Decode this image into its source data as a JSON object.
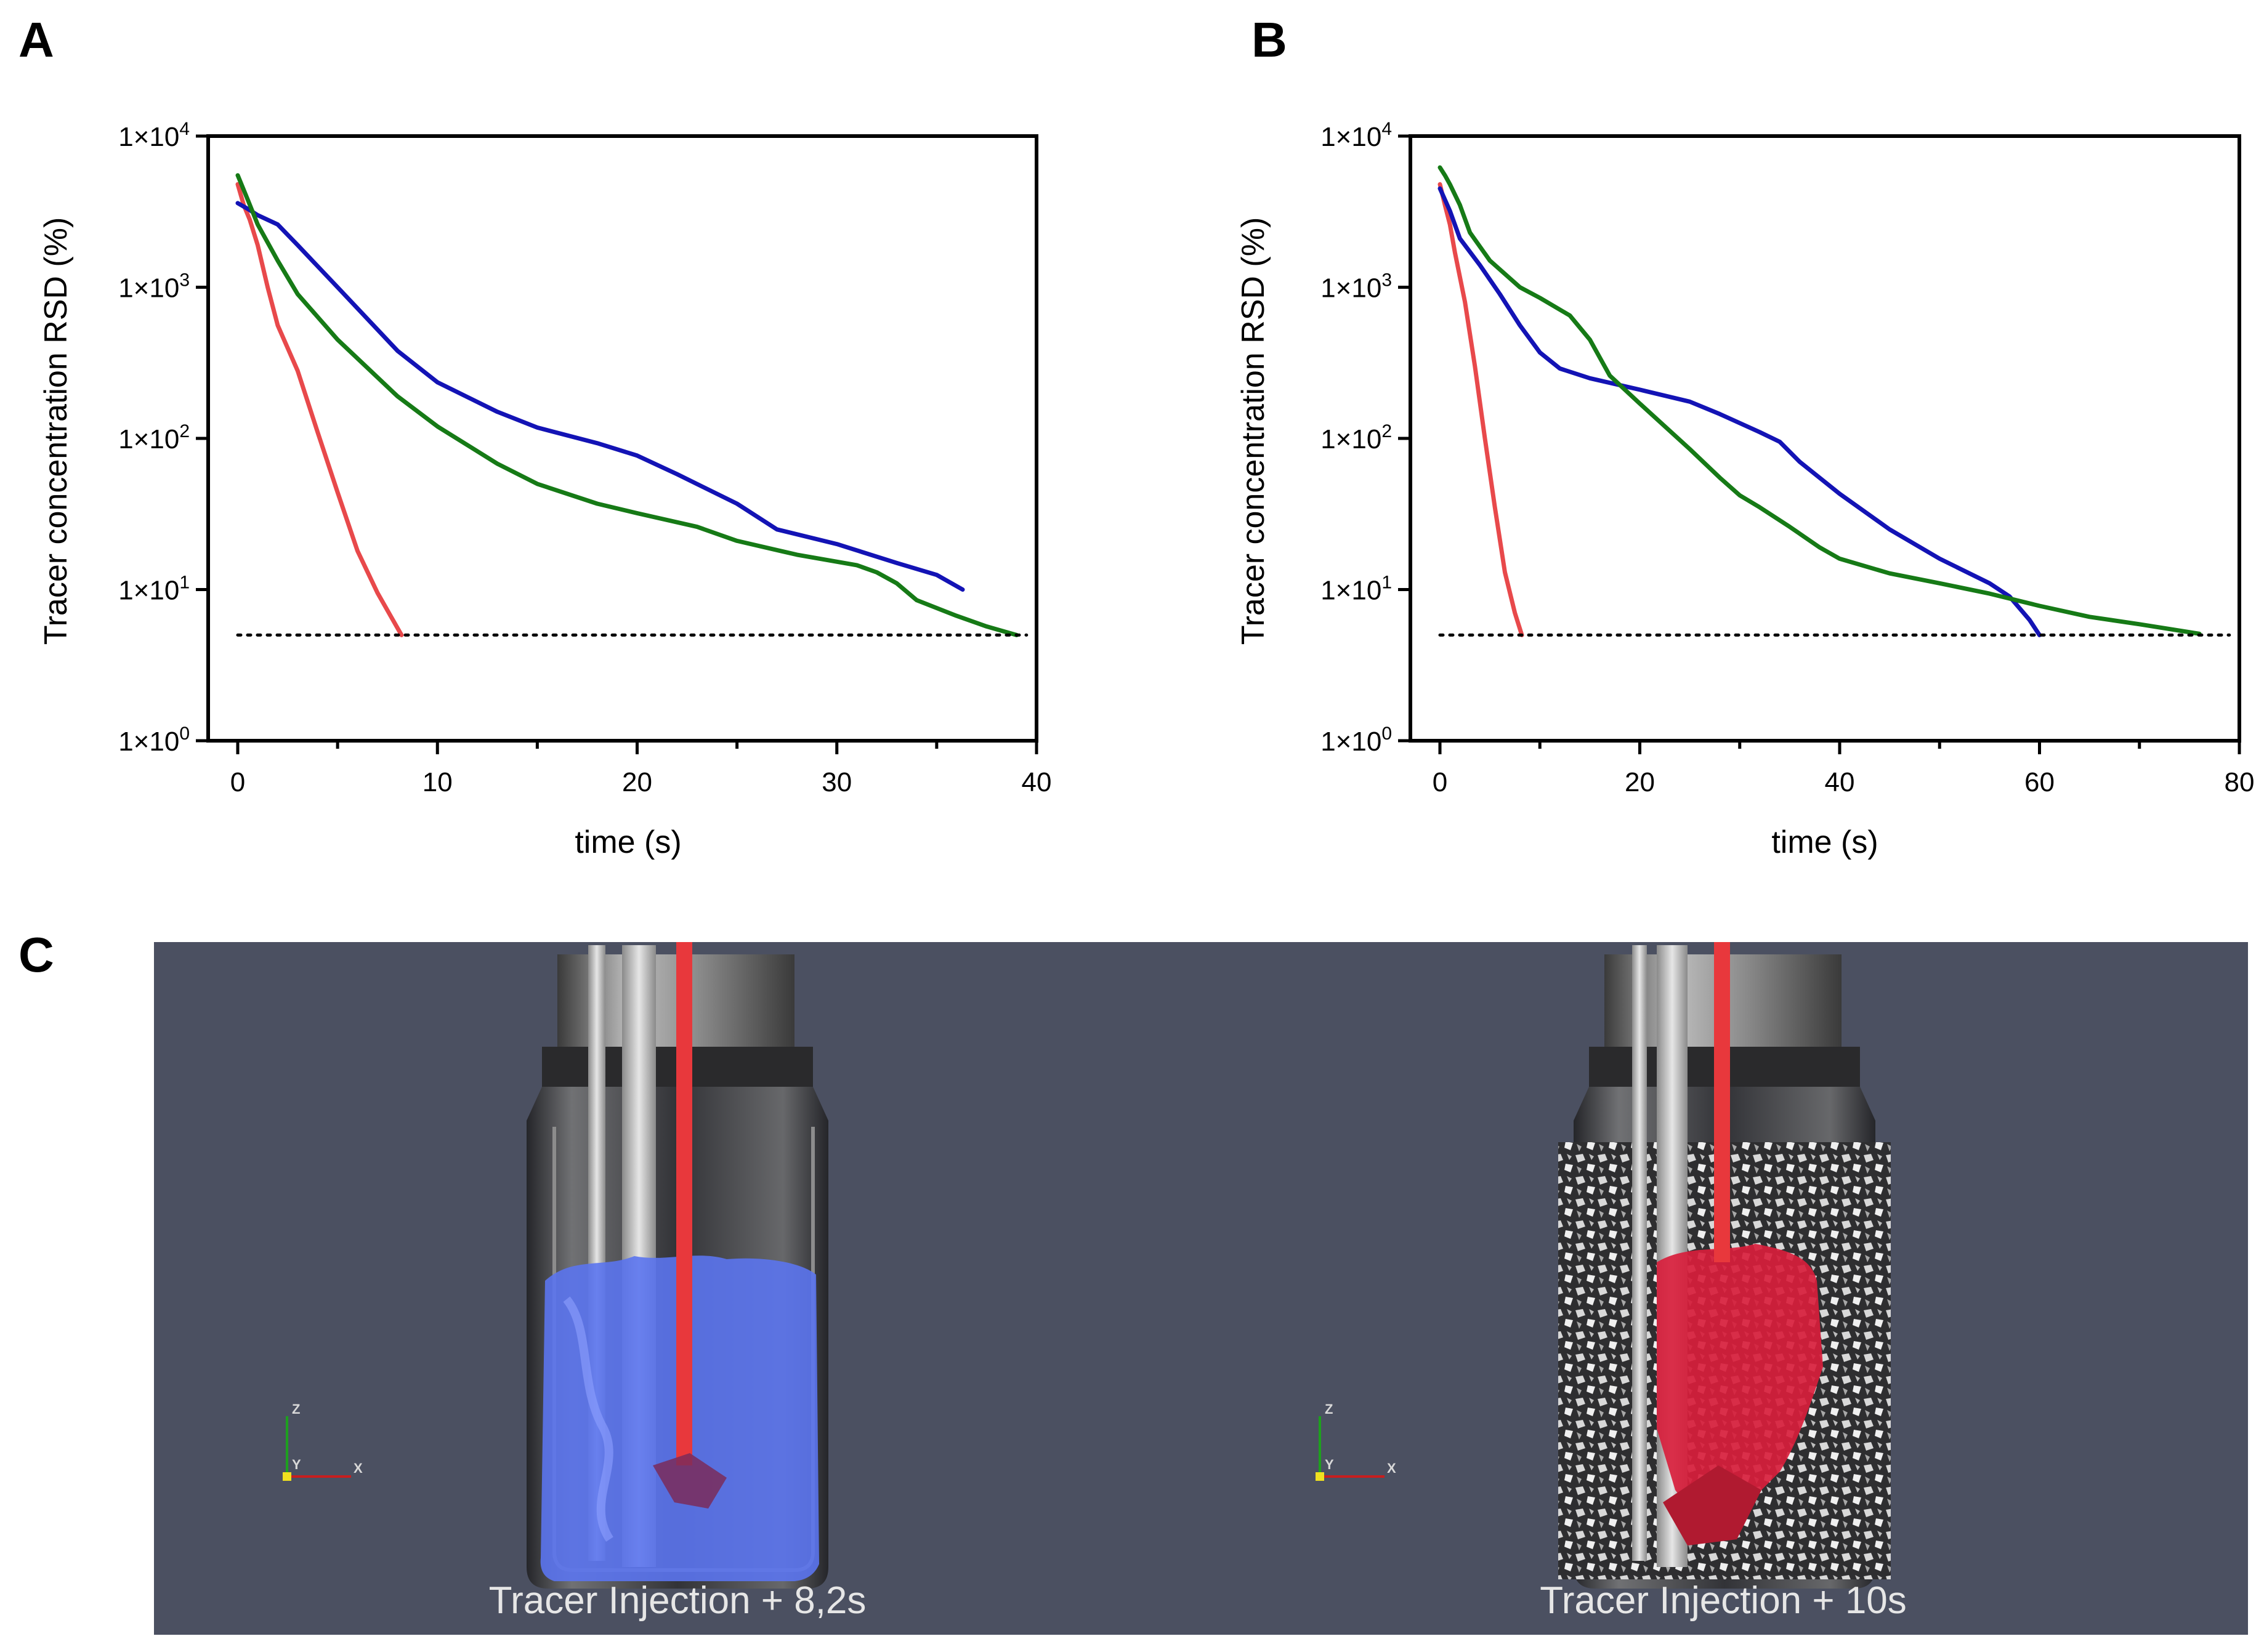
{
  "panels": {
    "a_letter": "A",
    "b_letter": "B",
    "c_letter": "C"
  },
  "chart_data": [
    {
      "id": "A",
      "type": "line",
      "xlabel": "time (s)",
      "ylabel": "Tracer concentration RSD (%)",
      "xlim": [
        0,
        40
      ],
      "ylim": [
        1,
        10000
      ],
      "yscale": "log",
      "xticks": [
        0,
        10,
        20,
        30,
        40
      ],
      "xtick_labels": [
        "0",
        "10",
        "20",
        "30",
        "40"
      ],
      "xminor": [
        5,
        15,
        25,
        35
      ],
      "yticks": [
        1,
        10,
        100,
        1000,
        10000
      ],
      "ytick_mantissa": [
        "1×10",
        "1×10",
        "1×10",
        "1×10",
        "1×10"
      ],
      "ytick_exp": [
        "0",
        "1",
        "2",
        "3",
        "4"
      ],
      "grid": false,
      "threshold": {
        "y": 5,
        "x": [
          0,
          39.5
        ],
        "style": "dotted"
      },
      "series": [
        {
          "color": "#e8494b",
          "points": [
            [
              0,
              4800
            ],
            [
              0.3,
              3500
            ],
            [
              0.6,
              2800
            ],
            [
              1,
              1900
            ],
            [
              1.5,
              1000
            ],
            [
              2,
              560
            ],
            [
              3,
              280
            ],
            [
              4,
              110
            ],
            [
              5,
              44
            ],
            [
              6,
              18
            ],
            [
              7,
              9.5
            ],
            [
              8.2,
              5
            ]
          ]
        },
        {
          "color": "#1313b5",
          "points": [
            [
              0,
              3600
            ],
            [
              0.5,
              3300
            ],
            [
              1,
              3000
            ],
            [
              2,
              2600
            ],
            [
              3,
              1900
            ],
            [
              5,
              1000
            ],
            [
              8,
              380
            ],
            [
              10,
              235
            ],
            [
              13,
              150
            ],
            [
              15,
              118
            ],
            [
              18,
              93
            ],
            [
              20,
              77
            ],
            [
              22,
              58
            ],
            [
              25,
              37
            ],
            [
              27,
              25
            ],
            [
              30,
              20
            ],
            [
              33,
              15
            ],
            [
              35,
              12.5
            ],
            [
              36.3,
              10
            ]
          ]
        },
        {
          "color": "#167a16",
          "points": [
            [
              0,
              5500
            ],
            [
              0.5,
              3800
            ],
            [
              1,
              2600
            ],
            [
              2,
              1500
            ],
            [
              3,
              900
            ],
            [
              5,
              450
            ],
            [
              8,
              190
            ],
            [
              10,
              120
            ],
            [
              13,
              68
            ],
            [
              15,
              50
            ],
            [
              18,
              37
            ],
            [
              20,
              32
            ],
            [
              23,
              26
            ],
            [
              25,
              21
            ],
            [
              28,
              17
            ],
            [
              31,
              14.5
            ],
            [
              32,
              13
            ],
            [
              33,
              11
            ],
            [
              34,
              8.5
            ],
            [
              36,
              6.7
            ],
            [
              37.5,
              5.7
            ],
            [
              39,
              5
            ]
          ]
        }
      ]
    },
    {
      "id": "B",
      "type": "line",
      "xlabel": "time (s)",
      "ylabel": "Tracer concentration RSD (%)",
      "xlim": [
        0,
        80
      ],
      "ylim": [
        1,
        10000
      ],
      "yscale": "log",
      "xticks": [
        0,
        20,
        40,
        60,
        80
      ],
      "xtick_labels": [
        "0",
        "20",
        "40",
        "60",
        "80"
      ],
      "xminor": [
        10,
        30,
        50,
        70
      ],
      "yticks": [
        1,
        10,
        100,
        1000,
        10000
      ],
      "ytick_mantissa": [
        "1×10",
        "1×10",
        "1×10",
        "1×10",
        "1×10"
      ],
      "ytick_exp": [
        "0",
        "1",
        "2",
        "3",
        "4"
      ],
      "grid": false,
      "threshold": {
        "y": 5,
        "x": [
          0,
          79
        ],
        "style": "dotted"
      },
      "series": [
        {
          "color": "#e8494b",
          "points": [
            [
              0,
              4800
            ],
            [
              0.5,
              3500
            ],
            [
              1,
              2600
            ],
            [
              1.5,
              1700
            ],
            [
              2.5,
              800
            ],
            [
              3.5,
              300
            ],
            [
              4.5,
              100
            ],
            [
              5.5,
              35
            ],
            [
              6.5,
              13
            ],
            [
              7.5,
              7
            ],
            [
              8.2,
              5
            ]
          ]
        },
        {
          "color": "#1313b5",
          "points": [
            [
              0,
              4500
            ],
            [
              1,
              3200
            ],
            [
              2,
              2100
            ],
            [
              4,
              1400
            ],
            [
              6,
              900
            ],
            [
              8,
              560
            ],
            [
              10,
              370
            ],
            [
              12,
              290
            ],
            [
              15,
              250
            ],
            [
              20,
              210
            ],
            [
              25,
              175
            ],
            [
              28,
              145
            ],
            [
              32,
              110
            ],
            [
              34,
              95
            ],
            [
              36,
              70
            ],
            [
              40,
              43
            ],
            [
              45,
              25
            ],
            [
              50,
              16
            ],
            [
              55,
              11
            ],
            [
              57,
              9
            ],
            [
              59,
              6.3
            ],
            [
              60,
              5
            ]
          ]
        },
        {
          "color": "#167a16",
          "points": [
            [
              0,
              6200
            ],
            [
              0.5,
              5500
            ],
            [
              1,
              4800
            ],
            [
              2,
              3500
            ],
            [
              3,
              2300
            ],
            [
              5,
              1500
            ],
            [
              8,
              1000
            ],
            [
              10,
              850
            ],
            [
              13,
              650
            ],
            [
              15,
              450
            ],
            [
              17,
              260
            ],
            [
              20,
              170
            ],
            [
              25,
              85
            ],
            [
              28,
              55
            ],
            [
              30,
              42
            ],
            [
              32,
              35
            ],
            [
              35,
              26
            ],
            [
              38,
              19
            ],
            [
              40,
              16
            ],
            [
              45,
              12.8
            ],
            [
              50,
              11
            ],
            [
              55,
              9.4
            ],
            [
              60,
              7.8
            ],
            [
              65,
              6.6
            ],
            [
              70,
              5.9
            ],
            [
              76,
              5.1
            ]
          ]
        }
      ]
    }
  ],
  "simulation": {
    "background_color": "#4b5061",
    "left_caption": "Tracer Injection + 8,2s",
    "right_caption": "Tracer Injection + 10s",
    "axis_labels": {
      "z": "Z",
      "y": "Y",
      "x": "X"
    },
    "left_tracer_color": "#5b74ee",
    "right_tracer_color": "#d81e3c",
    "shaft_color": "#e8383c"
  }
}
